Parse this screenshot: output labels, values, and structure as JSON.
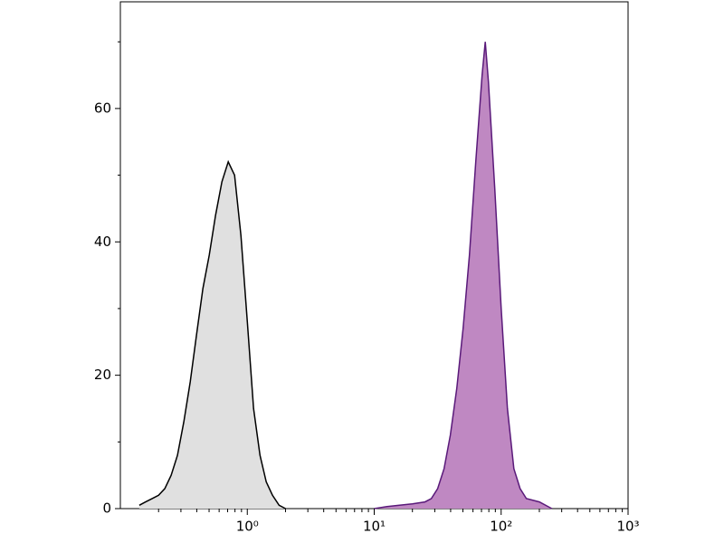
{
  "chart_data": {
    "type": "histogram-overlay",
    "xscale": "log",
    "xlim": [
      0.1,
      1000
    ],
    "ylim": [
      0,
      76
    ],
    "xticks": [
      {
        "value": 1,
        "label": "10⁰"
      },
      {
        "value": 10,
        "label": "10¹"
      },
      {
        "value": 100,
        "label": "10²"
      },
      {
        "value": 1000,
        "label": "10³"
      }
    ],
    "xminor_ticks": [
      0.2,
      0.3,
      0.4,
      0.5,
      0.6,
      0.7,
      0.8,
      0.9,
      2,
      3,
      4,
      5,
      6,
      7,
      8,
      9,
      20,
      30,
      40,
      50,
      60,
      70,
      80,
      90,
      200,
      300,
      400,
      500,
      600,
      700,
      800,
      900
    ],
    "yticks": [
      0,
      20,
      40,
      60
    ],
    "yminor_ticks": [
      10,
      30,
      50,
      70
    ],
    "series": [
      {
        "color": "#e0e0e0",
        "stroke": "#000000",
        "x": [
          0.141,
          0.158,
          0.178,
          0.2,
          0.224,
          0.251,
          0.282,
          0.316,
          0.355,
          0.398,
          0.447,
          0.501,
          0.562,
          0.631,
          0.708,
          0.794,
          0.891,
          1.0,
          1.12,
          1.26,
          1.41,
          1.58,
          1.78,
          2.0
        ],
        "values": [
          0.5,
          1,
          1.5,
          2,
          3,
          5,
          8,
          13,
          19,
          26,
          33,
          38,
          44,
          49,
          52,
          50,
          41,
          28,
          15,
          8,
          4,
          2,
          0.5,
          0
        ]
      },
      {
        "color": "#bf88c2",
        "stroke": "#5a1a7a",
        "x": [
          10,
          12.6,
          15.8,
          20,
          25.1,
          28.2,
          31.6,
          35.5,
          39.8,
          44.7,
          50.1,
          56.2,
          63.1,
          70.8,
          75,
          79.4,
          89.1,
          100,
          112,
          126,
          141,
          158,
          200,
          251
        ],
        "values": [
          0,
          0.3,
          0.5,
          0.7,
          1,
          1.5,
          3,
          6,
          11,
          18,
          27,
          38,
          52,
          65,
          70,
          64,
          48,
          30,
          15,
          6,
          3,
          1.5,
          1,
          0
        ]
      }
    ]
  }
}
